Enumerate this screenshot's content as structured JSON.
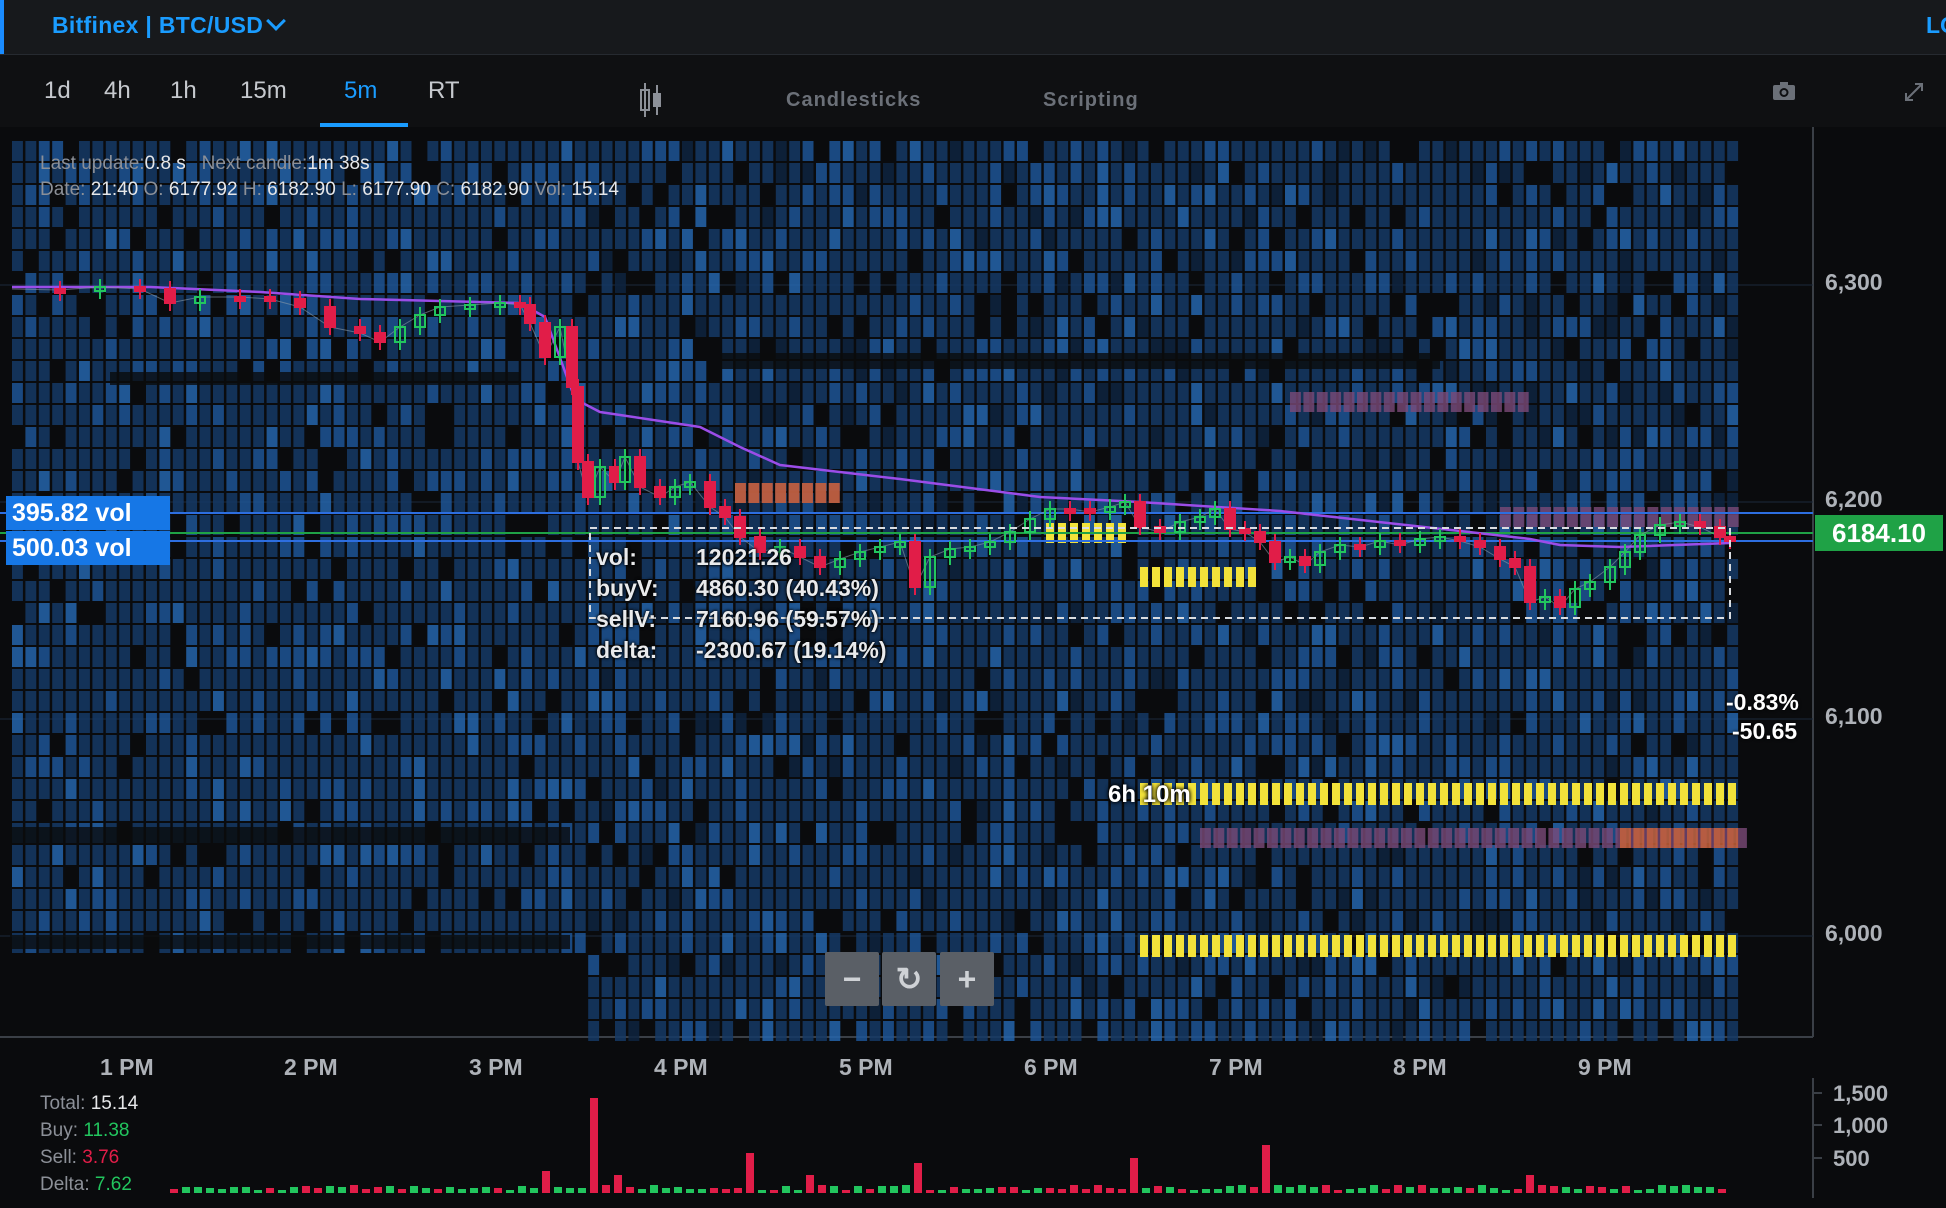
{
  "header": {
    "exchange_label": "Bitfinex | BTC/USD",
    "right_cut_text": "LO"
  },
  "toolbar": {
    "timeframes": [
      "1d",
      "4h",
      "1h",
      "15m",
      "5m",
      "RT"
    ],
    "active_timeframe": "5m",
    "chart_type_label": "Candlesticks",
    "scripting_label": "Scripting"
  },
  "info": {
    "last_update_label": "Last update:",
    "last_update_value": "0.8 s",
    "next_candle_label": "Next candle:",
    "next_candle_value": "1m 38s",
    "date_label": "Date:",
    "date_value": "21:40",
    "o_label": "O:",
    "o_value": "6177.92",
    "h_label": "H:",
    "h_value": "6182.90",
    "l_label": "L:",
    "l_value": "6177.90",
    "c_label": "C:",
    "c_value": "6182.90",
    "vol_label": "Vol:",
    "vol_value": "15.14"
  },
  "vol_tags": {
    "upper": "395.82 vol",
    "lower": "500.03 vol"
  },
  "last_price": "6184.10",
  "y_axis": [
    "6,300",
    "6,200",
    "6,100",
    "6,000"
  ],
  "x_axis": [
    "1 PM",
    "2 PM",
    "3 PM",
    "4 PM",
    "5 PM",
    "6 PM",
    "7 PM",
    "8 PM",
    "9 PM"
  ],
  "tooltip": {
    "vol_label": "vol:",
    "vol_value": "12021.26",
    "buy_label": "buyV:",
    "buy_value": "4860.30 (40.43%)",
    "sell_label": "sellV:",
    "sell_value": "7160.96 (59.57%)",
    "delta_label": "delta:",
    "delta_value": "-2300.67 (19.14%)"
  },
  "measure": {
    "percent": "-0.83%",
    "points": "-50.65",
    "duration": "6h 10m"
  },
  "zoom": {
    "minus": "−",
    "reset": "↻",
    "plus": "+"
  },
  "volume_axis": [
    "1,500",
    "1,000",
    "500"
  ],
  "stats": {
    "total_label": "Total:",
    "total_value": "15.14",
    "buy_label": "Buy:",
    "buy_value": "11.38",
    "sell_label": "Sell:",
    "sell_value": "3.76",
    "delta_label": "Delta:",
    "delta_value": "7.62"
  },
  "colors": {
    "accent": "#1a9cff",
    "up": "#22c55e",
    "down": "#e11d48",
    "vwap": "#9b4de8",
    "heat": "#1b4f86",
    "wall": "#f2e23a",
    "last_price_bg": "#1fa246"
  }
}
